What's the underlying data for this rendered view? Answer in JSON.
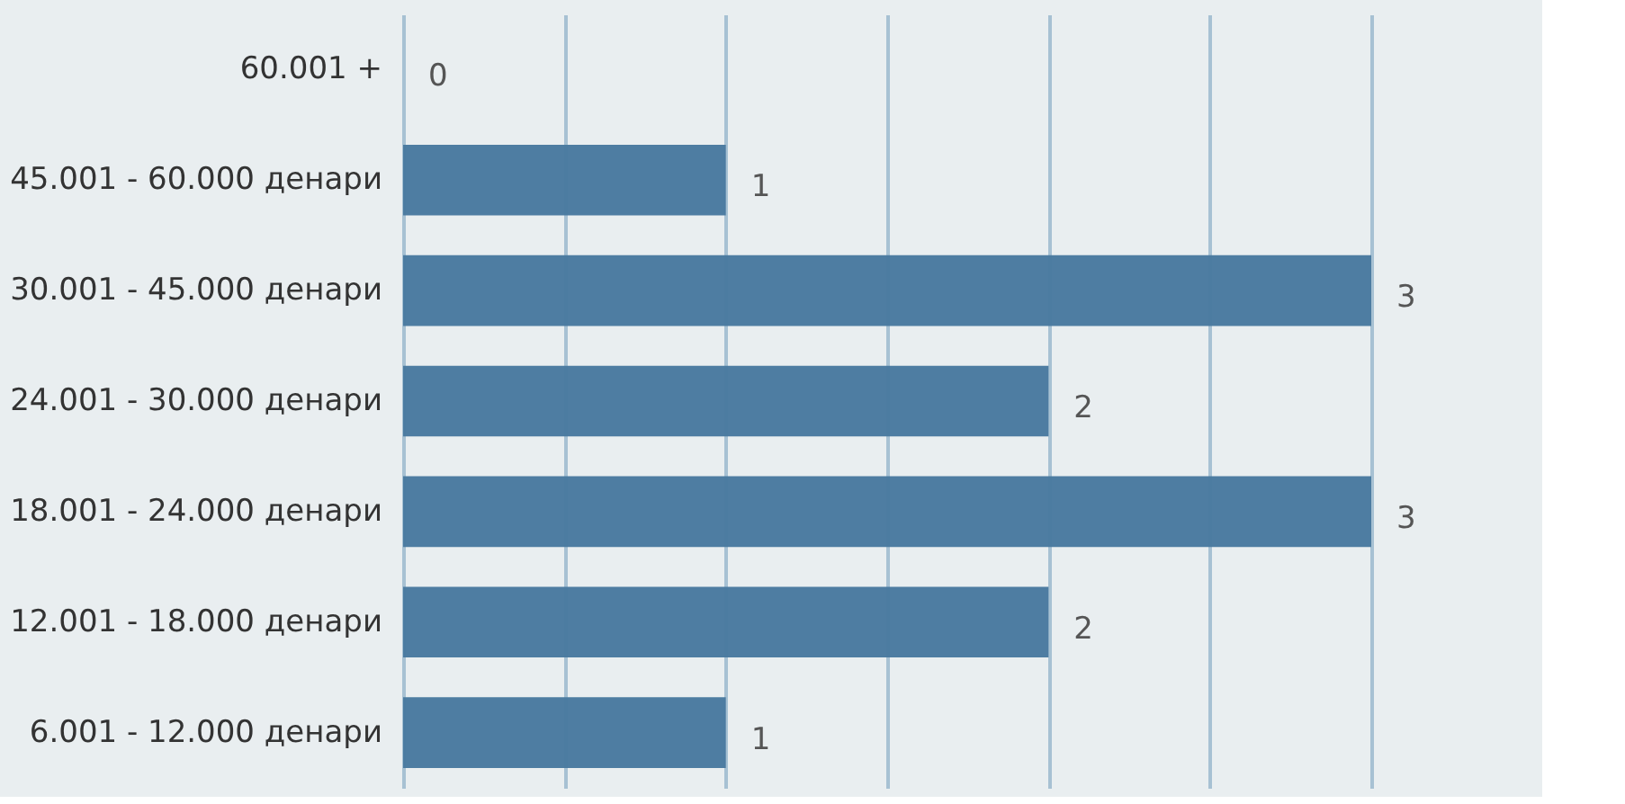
{
  "chart_data": {
    "type": "bar",
    "orientation": "horizontal",
    "categories": [
      "60.001 +",
      "45.001 - 60.000 денари",
      "30.001 - 45.000 денари",
      "24.001 - 30.000 денари",
      "18.001 - 24.000 денари",
      "12.001 - 18.000 денари",
      "6.001 - 12.000 денари"
    ],
    "values": [
      0,
      1,
      3,
      2,
      3,
      2,
      1
    ],
    "color": "#4a7aa0",
    "data_labels": true,
    "xlim": [
      0,
      3
    ],
    "xticks": [
      {
        "value": 0,
        "label": null
      },
      {
        "value": 0.5,
        "label": null
      },
      {
        "value": 1,
        "label": null
      },
      {
        "value": 1.5,
        "label": null
      },
      {
        "value": 2,
        "label": null
      },
      {
        "value": 2.5,
        "label": null
      },
      {
        "value": 3,
        "label": null
      }
    ],
    "grid": "x",
    "tick_labels": "y"
  }
}
